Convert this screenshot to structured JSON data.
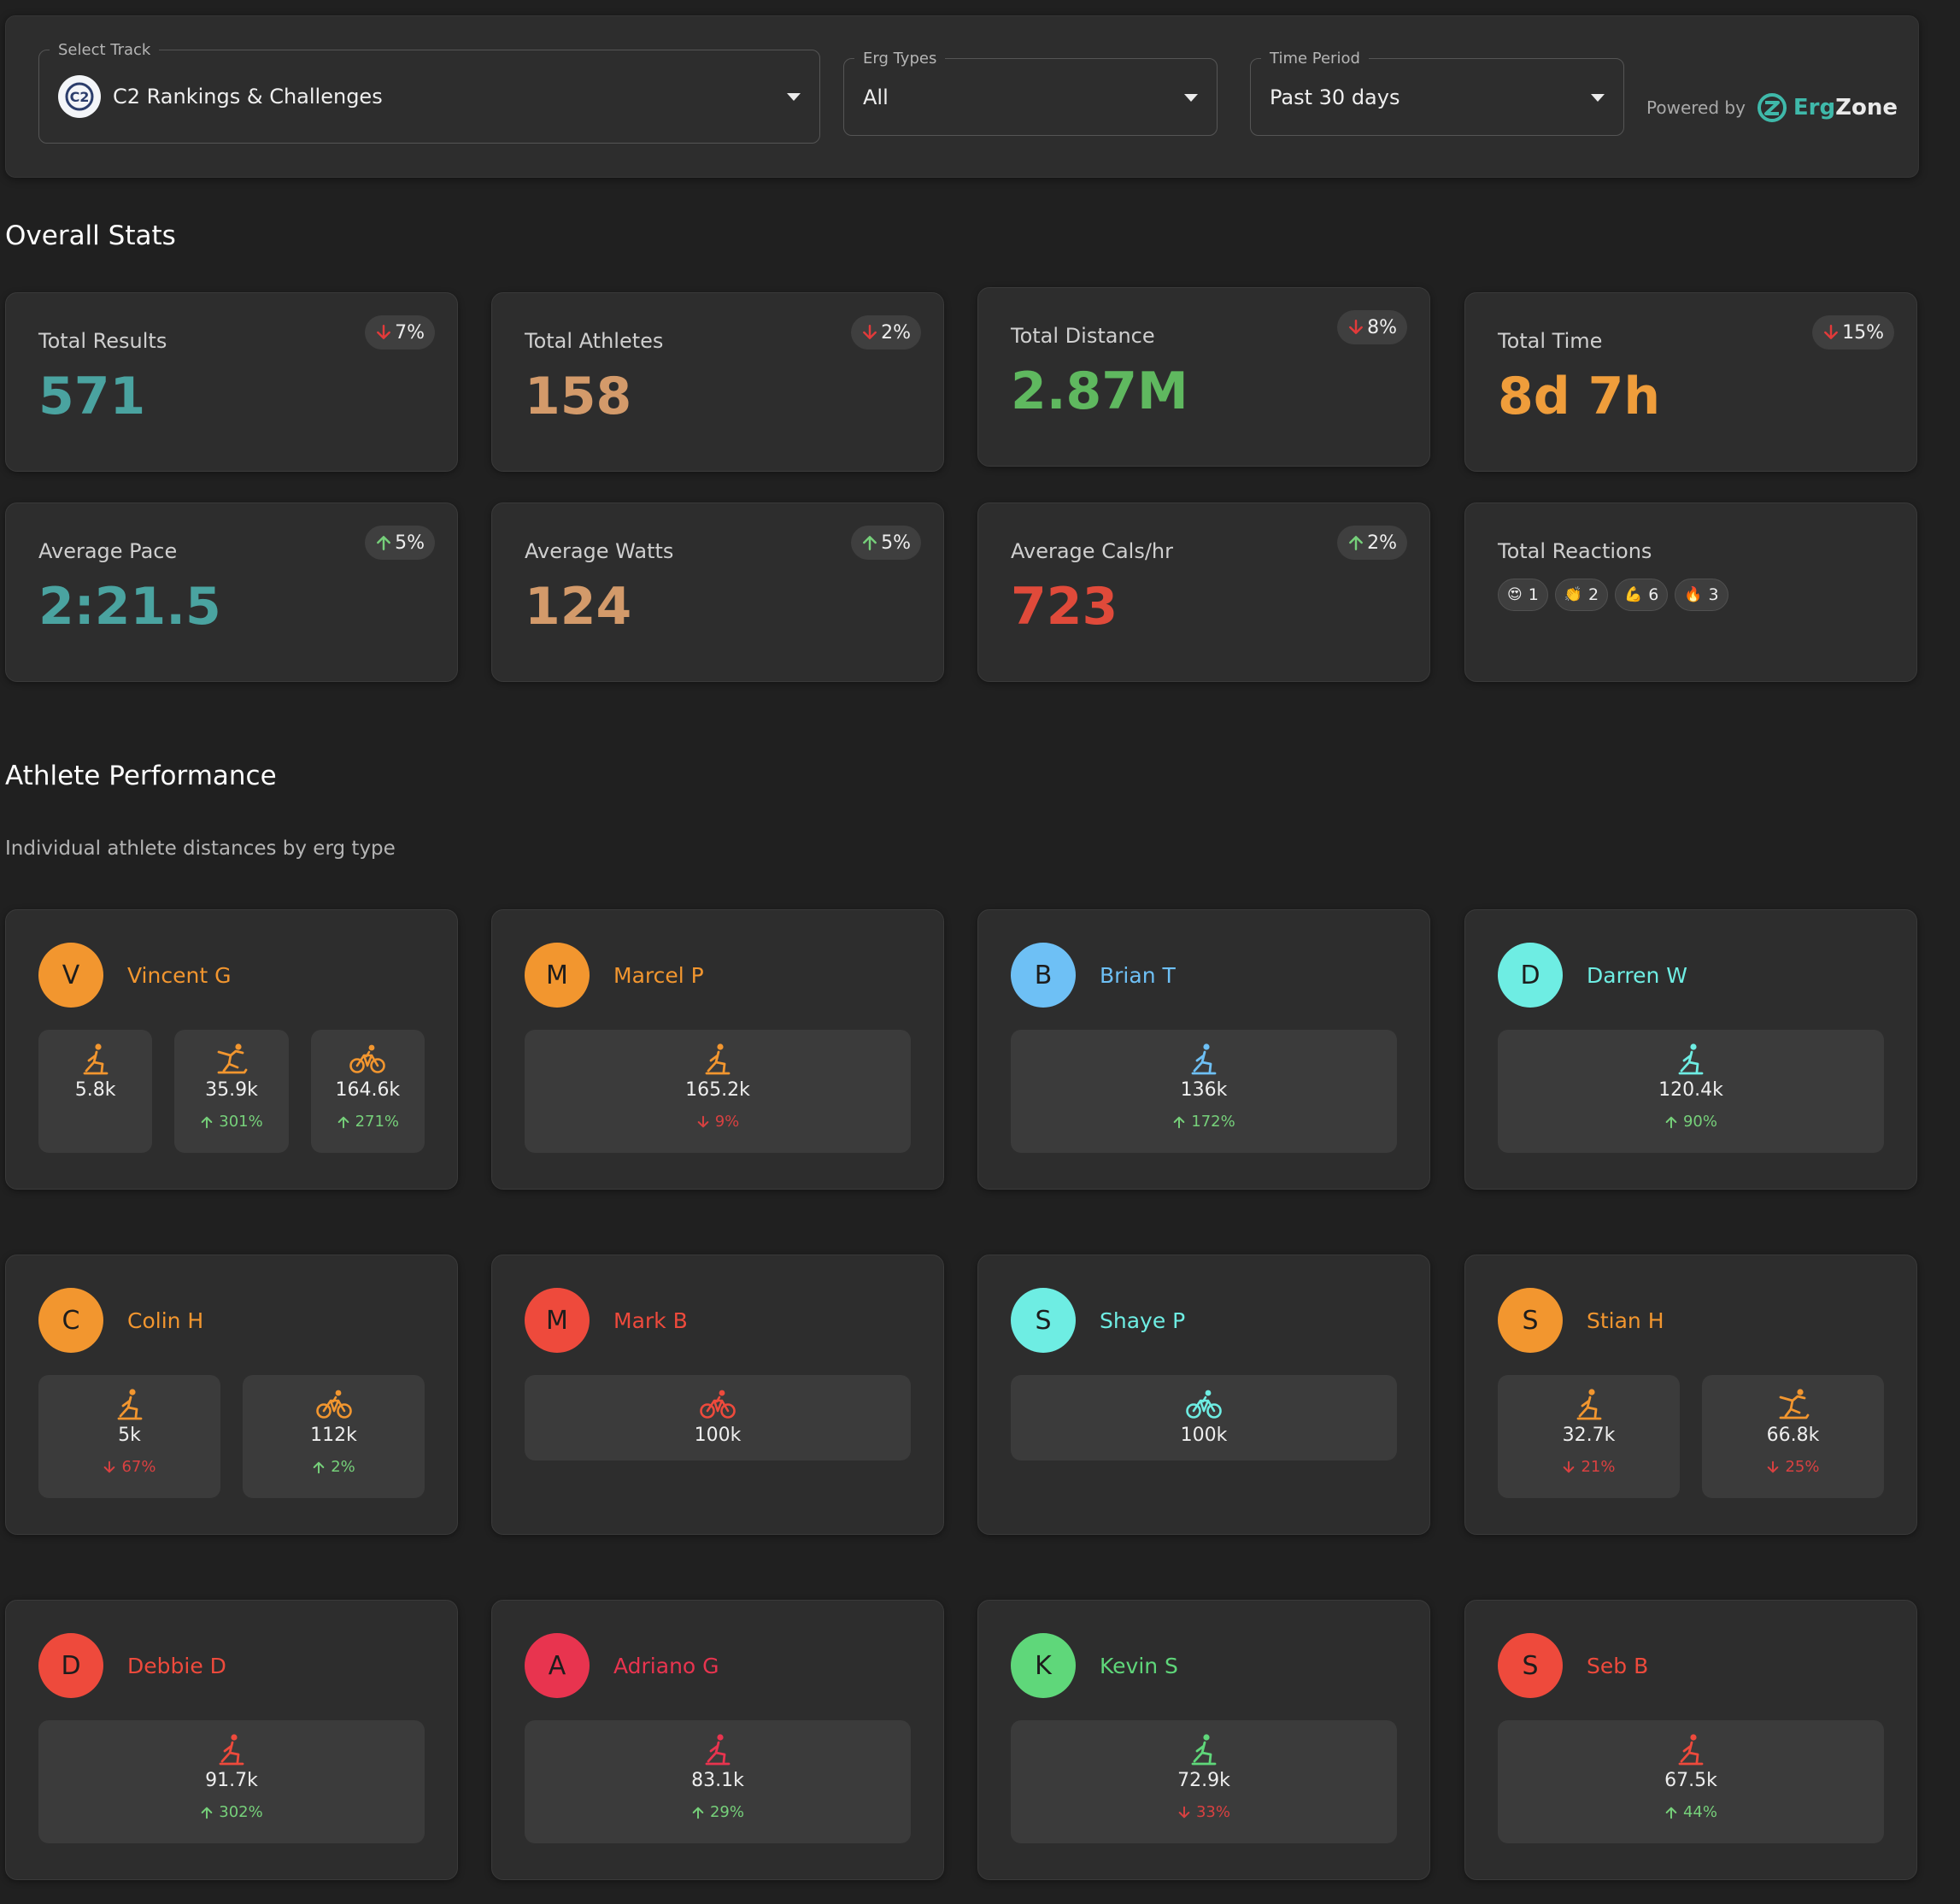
{
  "filters": {
    "track": {
      "legend": "Select Track",
      "value": "C2 Rankings & Challenges",
      "logo_text": "C2"
    },
    "erg_types": {
      "legend": "Erg Types",
      "value": "All"
    },
    "time_period": {
      "legend": "Time Period",
      "value": "Past 30 days"
    },
    "powered_by": "Powered by",
    "brand": {
      "part1": "Erg",
      "part2": "Zone"
    }
  },
  "overall": {
    "title": "Overall Stats",
    "cards": [
      {
        "label": "Total Results",
        "value": "571",
        "change": "7%",
        "trend": "down",
        "color": "#4aa3a0"
      },
      {
        "label": "Total Athletes",
        "value": "158",
        "change": "2%",
        "trend": "down",
        "color": "#d39a6a"
      },
      {
        "label": "Total Distance",
        "value": "2.87M",
        "change": "8%",
        "trend": "down",
        "color": "#5fb85f"
      },
      {
        "label": "Total Time",
        "value": "8d 7h",
        "change": "15%",
        "trend": "down",
        "color": "#ef9d3b"
      },
      {
        "label": "Average Pace",
        "value": "2:21.5",
        "change": "5%",
        "trend": "up",
        "color": "#4aa3a0"
      },
      {
        "label": "Average Watts",
        "value": "124",
        "change": "5%",
        "trend": "up",
        "color": "#d39a6a"
      },
      {
        "label": "Average Cals/hr",
        "value": "723",
        "change": "2%",
        "trend": "up",
        "color": "#e04a3a"
      }
    ],
    "reactions": {
      "label": "Total Reactions",
      "items": [
        {
          "emoji": "😍",
          "count": "1"
        },
        {
          "emoji": "👏",
          "count": "2"
        },
        {
          "emoji": "💪",
          "count": "6"
        },
        {
          "emoji": "🔥",
          "count": "3"
        }
      ]
    }
  },
  "performance": {
    "title": "Athlete Performance",
    "subtitle": "Individual athlete distances by erg type",
    "athletes": [
      {
        "initial": "V",
        "name": "Vincent G",
        "color": "#f2962f",
        "tiles": [
          {
            "erg": "rower",
            "value": "5.8k"
          },
          {
            "erg": "ski",
            "value": "35.9k",
            "change": "301%",
            "trend": "up"
          },
          {
            "erg": "bike",
            "value": "164.6k",
            "change": "271%",
            "trend": "up"
          }
        ]
      },
      {
        "initial": "M",
        "name": "Marcel P",
        "color": "#f2962f",
        "tiles": [
          {
            "erg": "rower",
            "value": "165.2k",
            "change": "9%",
            "trend": "down"
          }
        ]
      },
      {
        "initial": "B",
        "name": "Brian T",
        "color": "#6ec0f5",
        "tiles": [
          {
            "erg": "rower",
            "value": "136k",
            "change": "172%",
            "trend": "up"
          }
        ]
      },
      {
        "initial": "D",
        "name": "Darren W",
        "color": "#6eede3",
        "tiles": [
          {
            "erg": "rower",
            "value": "120.4k",
            "change": "90%",
            "trend": "up"
          }
        ]
      },
      {
        "initial": "C",
        "name": "Colin H",
        "color": "#f2962f",
        "tiles": [
          {
            "erg": "rower",
            "value": "5k",
            "change": "67%",
            "trend": "down"
          },
          {
            "erg": "bike",
            "value": "112k",
            "change": "2%",
            "trend": "up"
          }
        ]
      },
      {
        "initial": "M",
        "name": "Mark B",
        "color": "#ee4a3c",
        "tiles": [
          {
            "erg": "bike",
            "value": "100k"
          }
        ]
      },
      {
        "initial": "S",
        "name": "Shaye P",
        "color": "#6eede3",
        "tiles": [
          {
            "erg": "bike",
            "value": "100k"
          }
        ]
      },
      {
        "initial": "S",
        "name": "Stian H",
        "color": "#f2962f",
        "tiles": [
          {
            "erg": "rower",
            "value": "32.7k",
            "change": "21%",
            "trend": "down"
          },
          {
            "erg": "ski",
            "value": "66.8k",
            "change": "25%",
            "trend": "down"
          }
        ]
      },
      {
        "initial": "D",
        "name": "Debbie D",
        "color": "#ee4a3c",
        "tiles": [
          {
            "erg": "rower",
            "value": "91.7k",
            "change": "302%",
            "trend": "up"
          }
        ]
      },
      {
        "initial": "A",
        "name": "Adriano G",
        "color": "#e8344f",
        "tiles": [
          {
            "erg": "rower",
            "value": "83.1k",
            "change": "29%",
            "trend": "up"
          }
        ]
      },
      {
        "initial": "K",
        "name": "Kevin S",
        "color": "#5fd77a",
        "tiles": [
          {
            "erg": "rower",
            "value": "72.9k",
            "change": "33%",
            "trend": "down"
          }
        ]
      },
      {
        "initial": "S",
        "name": "Seb B",
        "color": "#ee4a3c",
        "tiles": [
          {
            "erg": "rower",
            "value": "67.5k",
            "change": "44%",
            "trend": "up"
          }
        ]
      }
    ]
  }
}
